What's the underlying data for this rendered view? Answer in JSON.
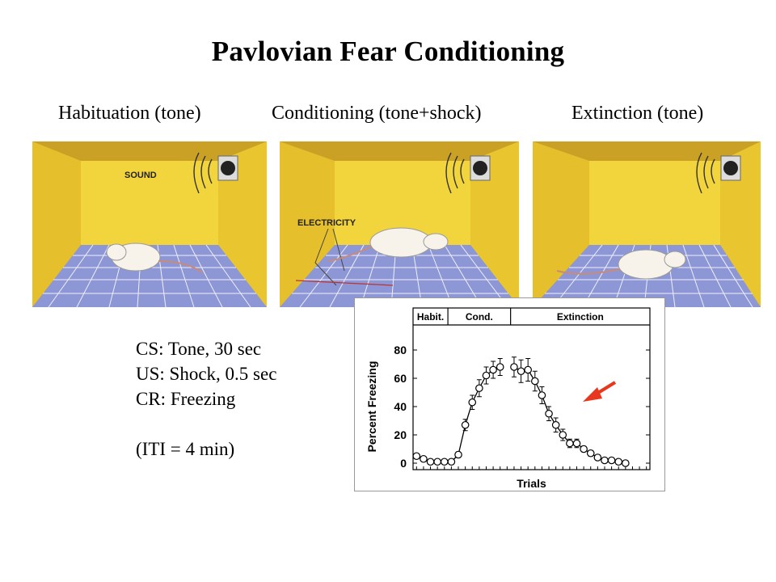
{
  "title": "Pavlovian Fear Conditioning",
  "stages": [
    "Habituation (tone)",
    "Conditioning (tone+shock)",
    "Extinction (tone)"
  ],
  "panel_labels": {
    "sound": "SOUND",
    "electricity": "ELECTRICITY"
  },
  "notes": {
    "cs": "CS: Tone, 30 sec",
    "us": "US: Shock, 0.5 sec",
    "cr": "CR: Freezing",
    "iti": "(ITI = 4 min)"
  },
  "colors": {
    "wall_back": "#f2d43c",
    "wall_side": "#e6c02c",
    "ceiling": "#caa125",
    "floor": "#8d97d6",
    "grid_line": "#ffffff",
    "arrow": "#e8371f"
  },
  "chart_data": {
    "type": "line",
    "ylabel": "Percent  Freezing",
    "xlabel": "Trials",
    "ylim": [
      0,
      80
    ],
    "yticks": [
      0,
      20,
      40,
      60,
      80
    ],
    "phases": [
      {
        "name": "Habit.",
        "trials": 5
      },
      {
        "name": "Cond.",
        "trials": 9
      },
      {
        "name": "Extinction",
        "trials": 20
      }
    ],
    "series": [
      {
        "segment": "habituation",
        "values": [
          5,
          3,
          1,
          1,
          1
        ]
      },
      {
        "segment": "conditioning",
        "values": [
          1,
          6,
          27,
          43,
          53,
          62,
          66,
          68
        ]
      },
      {
        "segment": "extinction",
        "values": [
          68,
          65,
          66,
          58,
          48,
          35,
          27,
          20,
          14,
          14,
          10,
          7,
          4,
          2,
          2,
          1,
          0
        ]
      }
    ],
    "error_bars": {
      "conditioning": [
        0,
        2,
        4,
        5,
        6,
        6,
        6,
        6
      ],
      "extinction": [
        7,
        8,
        8,
        7,
        6,
        5,
        5,
        4,
        3,
        3,
        2,
        2,
        1,
        1,
        1,
        0,
        0
      ]
    },
    "annotation": "red arrow pointing at extinction curve"
  }
}
